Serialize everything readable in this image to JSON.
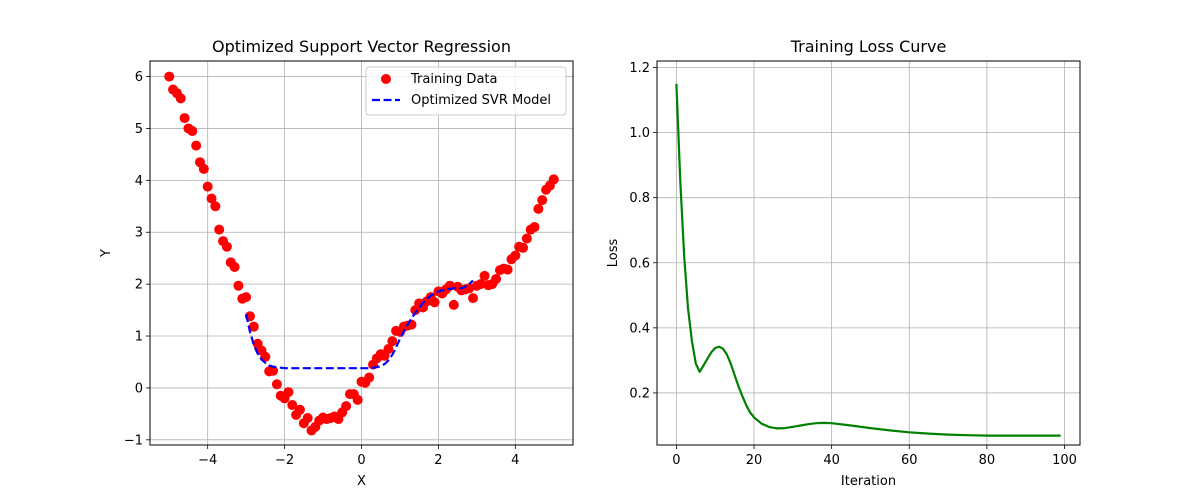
{
  "chart_data": [
    {
      "type": "scatter",
      "title": "Optimized Support Vector Regression",
      "xlabel": "X",
      "ylabel": "Y",
      "xlim": [
        -5.5,
        5.5
      ],
      "ylim": [
        -1.1,
        6.3
      ],
      "xticks": [
        -4,
        -2,
        0,
        2,
        4
      ],
      "yticks": [
        -1,
        0,
        1,
        2,
        3,
        4,
        5,
        6
      ],
      "xtick_labels": [
        "−4",
        "−2",
        "0",
        "2",
        "4"
      ],
      "ytick_labels": [
        "−1",
        "0",
        "1",
        "2",
        "3",
        "4",
        "5",
        "6"
      ],
      "grid": true,
      "legend_position": "upper right",
      "legend": [
        {
          "label": "Training Data",
          "marker": "circle",
          "color": "#ff0000"
        },
        {
          "label": "Optimized SVR Model",
          "marker": "dashed-line",
          "color": "#0000ff"
        }
      ],
      "series": [
        {
          "name": "Training Data",
          "kind": "scatter",
          "color": "#ff0000",
          "x": [
            -5.0,
            -4.9,
            -4.8,
            -4.7,
            -4.6,
            -4.5,
            -4.4,
            -4.3,
            -4.2,
            -4.1,
            -4.0,
            -3.9,
            -3.8,
            -3.7,
            -3.6,
            -3.5,
            -3.4,
            -3.3,
            -3.2,
            -3.1,
            -3.0,
            -2.9,
            -2.8,
            -2.7,
            -2.6,
            -2.5,
            -2.4,
            -2.3,
            -2.2,
            -2.1,
            -2.0,
            -1.9,
            -1.8,
            -1.7,
            -1.6,
            -1.5,
            -1.4,
            -1.3,
            -1.2,
            -1.1,
            -1.0,
            -0.9,
            -0.8,
            -0.7,
            -0.6,
            -0.5,
            -0.4,
            -0.3,
            -0.2,
            -0.1,
            0.0,
            0.1,
            0.2,
            0.3,
            0.4,
            0.5,
            0.6,
            0.7,
            0.8,
            0.9,
            1.0,
            1.1,
            1.2,
            1.3,
            1.4,
            1.5,
            1.6,
            1.7,
            1.8,
            1.9,
            2.0,
            2.1,
            2.2,
            2.3,
            2.4,
            2.5,
            2.6,
            2.7,
            2.8,
            2.9,
            3.0,
            3.1,
            3.2,
            3.3,
            3.4,
            3.5,
            3.6,
            3.7,
            3.8,
            3.9,
            4.0,
            4.1,
            4.2,
            4.3,
            4.4,
            4.5,
            4.6,
            4.7,
            4.8,
            4.9,
            5.0
          ],
          "y": [
            6.0,
            5.75,
            5.68,
            5.58,
            5.2,
            5.0,
            4.95,
            4.67,
            4.35,
            4.22,
            3.88,
            3.65,
            3.5,
            3.05,
            2.83,
            2.72,
            2.42,
            2.33,
            1.97,
            1.72,
            1.75,
            1.38,
            1.18,
            0.85,
            0.72,
            0.6,
            0.32,
            0.33,
            0.07,
            -0.15,
            -0.2,
            -0.08,
            -0.33,
            -0.52,
            -0.42,
            -0.68,
            -0.58,
            -0.82,
            -0.75,
            -0.63,
            -0.57,
            -0.6,
            -0.58,
            -0.55,
            -0.6,
            -0.47,
            -0.35,
            -0.12,
            -0.12,
            -0.23,
            0.12,
            0.1,
            0.2,
            0.45,
            0.57,
            0.65,
            0.62,
            0.75,
            0.9,
            1.1,
            1.08,
            1.18,
            1.2,
            1.22,
            1.5,
            1.63,
            1.55,
            1.67,
            1.75,
            1.65,
            1.86,
            1.82,
            1.9,
            1.97,
            1.6,
            1.95,
            1.88,
            1.9,
            1.92,
            1.73,
            1.97,
            2.0,
            2.16,
            1.98,
            2.0,
            2.1,
            2.27,
            2.3,
            2.28,
            2.48,
            2.55,
            2.72,
            2.7,
            2.88,
            3.05,
            3.1,
            3.45,
            3.62,
            3.82,
            3.9,
            4.02
          ]
        },
        {
          "name": "Optimized SVR Model",
          "kind": "dashed-line",
          "color": "#0000ff",
          "x": [
            -3.0,
            -2.9,
            -2.8,
            -2.7,
            -2.6,
            -2.5,
            -2.4,
            -2.3,
            -2.2,
            -2.1,
            -2.0,
            -1.8,
            -1.6,
            -1.4,
            -1.2,
            -1.0,
            -0.8,
            -0.6,
            -0.4,
            -0.2,
            0.0,
            0.2,
            0.4,
            0.5,
            0.6,
            0.7,
            0.8,
            0.9,
            1.0,
            1.2,
            1.4,
            1.6,
            1.8,
            2.0,
            2.2,
            2.4,
            2.6,
            2.7,
            2.8,
            2.9
          ],
          "y": [
            1.42,
            1.08,
            0.83,
            0.66,
            0.55,
            0.48,
            0.43,
            0.41,
            0.39,
            0.39,
            0.38,
            0.38,
            0.38,
            0.38,
            0.38,
            0.38,
            0.38,
            0.38,
            0.38,
            0.38,
            0.38,
            0.38,
            0.4,
            0.42,
            0.46,
            0.53,
            0.64,
            0.78,
            0.95,
            1.22,
            1.45,
            1.64,
            1.78,
            1.86,
            1.9,
            1.92,
            1.92,
            1.95,
            2.0,
            2.07
          ]
        }
      ]
    },
    {
      "type": "line",
      "title": "Training Loss Curve",
      "xlabel": "Iteration",
      "ylabel": "Loss",
      "xlim": [
        -5,
        104
      ],
      "ylim": [
        0.04,
        1.22
      ],
      "xticks": [
        0,
        20,
        40,
        60,
        80,
        100
      ],
      "yticks": [
        0.2,
        0.4,
        0.6,
        0.8,
        1.0,
        1.2
      ],
      "xtick_labels": [
        "0",
        "20",
        "40",
        "60",
        "80",
        "100"
      ],
      "ytick_labels": [
        "0.2",
        "0.4",
        "0.6",
        "0.8",
        "1.0",
        "1.2"
      ],
      "grid": true,
      "series": [
        {
          "kind": "line",
          "color": "#008000",
          "x": [
            0,
            1,
            2,
            3,
            4,
            5,
            6,
            7,
            8,
            9,
            10,
            11,
            12,
            13,
            14,
            15,
            16,
            17,
            18,
            19,
            20,
            22,
            24,
            26,
            28,
            30,
            32,
            34,
            36,
            38,
            40,
            45,
            50,
            55,
            60,
            65,
            70,
            75,
            80,
            85,
            90,
            95,
            99
          ],
          "y": [
            1.15,
            0.85,
            0.62,
            0.46,
            0.36,
            0.29,
            0.265,
            0.285,
            0.305,
            0.325,
            0.338,
            0.342,
            0.336,
            0.318,
            0.29,
            0.255,
            0.22,
            0.19,
            0.162,
            0.14,
            0.125,
            0.105,
            0.095,
            0.091,
            0.092,
            0.096,
            0.1,
            0.104,
            0.107,
            0.108,
            0.107,
            0.1,
            0.092,
            0.085,
            0.079,
            0.075,
            0.072,
            0.07,
            0.069,
            0.069,
            0.069,
            0.069,
            0.069
          ]
        }
      ]
    }
  ]
}
